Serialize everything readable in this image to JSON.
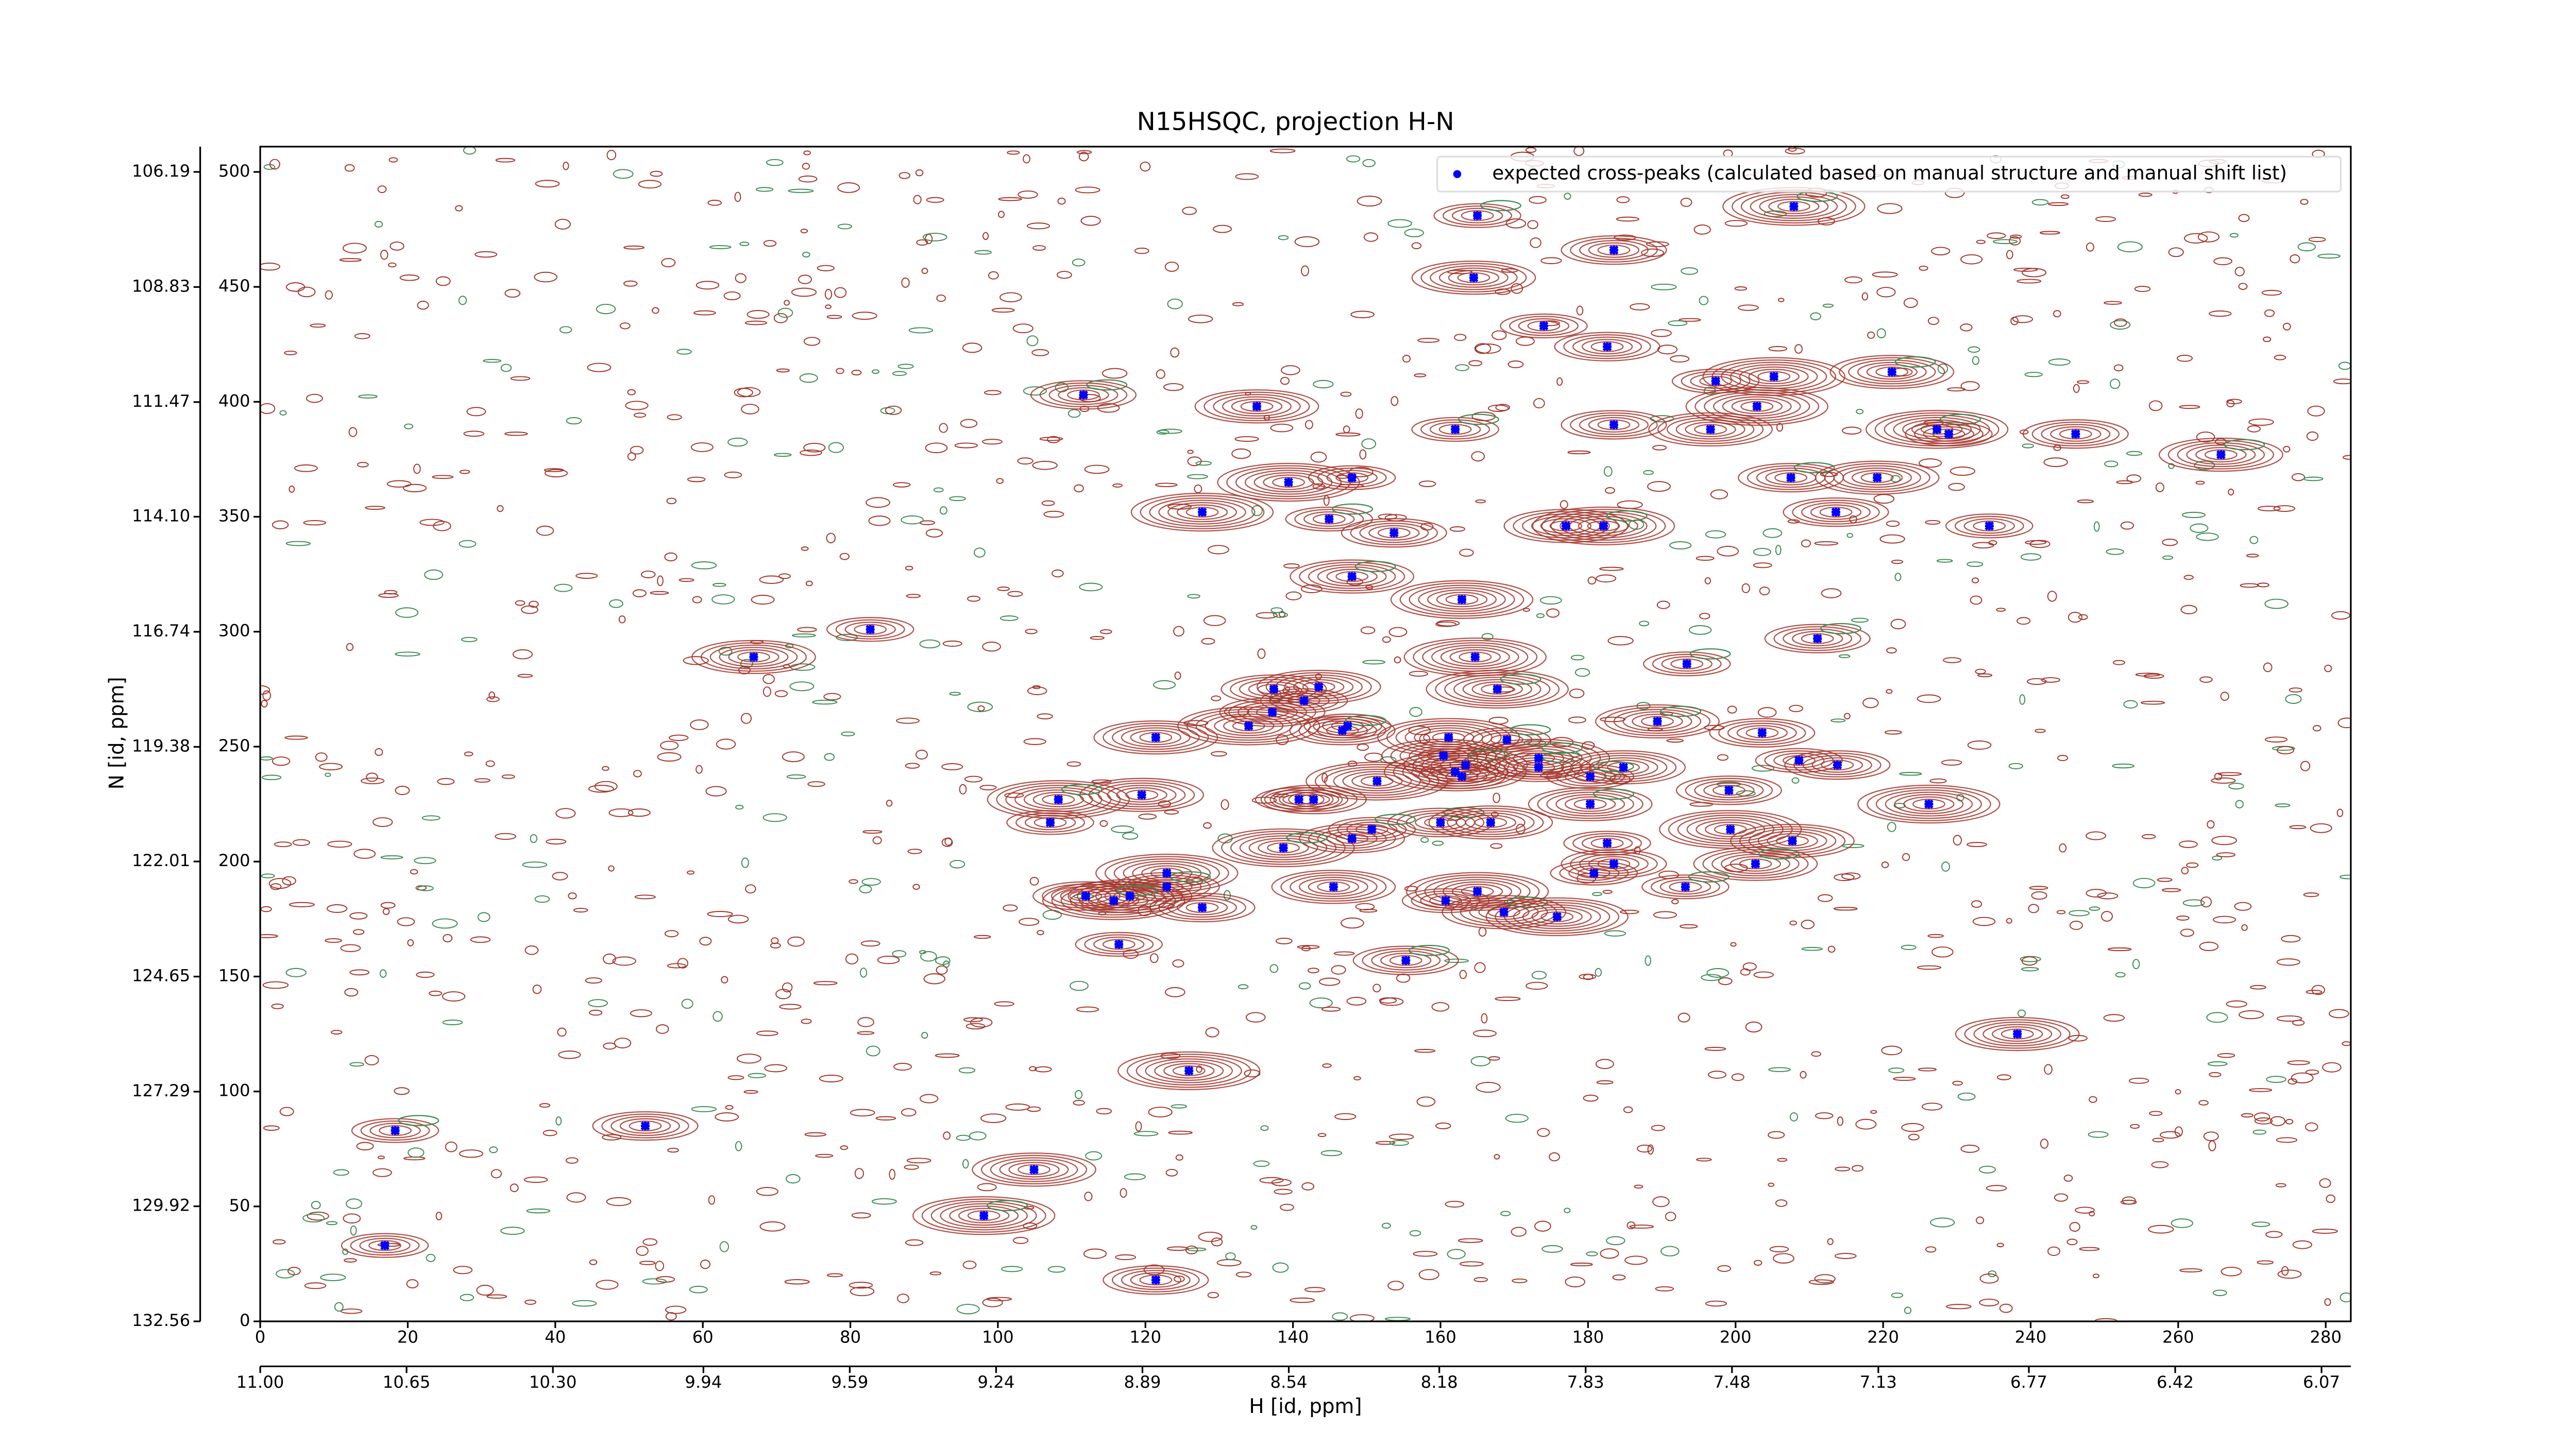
{
  "chart_data": {
    "type": "scatter",
    "title": "N15HSQC, projection H-N",
    "x_label": "H [id, ppm]",
    "y_label": "N [id, ppm]",
    "x": [
      165.0,
      183.5,
      164.5,
      207.9,
      174.0,
      182.6,
      221.2,
      205.2,
      197.3,
      111.6,
      135.1,
      202.9,
      162.0,
      183.5,
      196.6,
      227.3,
      228.9,
      246.1,
      265.8,
      139.4,
      148.0,
      207.5,
      219.2,
      127.7,
      144.9,
      213.6,
      177.0,
      182.1,
      234.4,
      153.7,
      148.0,
      162.9,
      82.7,
      211.1,
      66.9,
      164.7,
      193.4,
      137.4,
      143.5,
      167.7,
      141.5,
      137.2,
      189.4,
      134.0,
      147.4,
      146.7,
      121.4,
      161.1,
      169.0,
      203.6,
      160.4,
      173.3,
      208.6,
      213.8,
      163.4,
      162.0,
      162.9,
      173.3,
      184.8,
      151.4,
      180.3,
      199.1,
      119.5,
      108.2,
      140.8,
      142.8,
      180.3,
      226.2,
      107.1,
      160.0,
      166.8,
      199.3,
      150.7,
      148.0,
      207.7,
      138.7,
      182.6,
      183.5,
      202.7,
      122.9,
      180.8,
      122.9,
      145.5,
      165.0,
      193.2,
      111.9,
      117.9,
      115.7,
      160.7,
      127.7,
      168.6,
      175.8,
      116.4,
      155.3,
      238.2,
      125.9,
      18.3,
      52.2,
      104.9,
      98.1,
      16.9,
      121.4
    ],
    "series": [
      {
        "name": "expected cross-peaks (calculated based on manual structure and manual shift list)",
        "color": "#0000ff",
        "values": [
          481,
          466,
          454,
          485,
          433,
          424,
          413,
          411,
          409,
          403,
          398,
          398,
          388,
          390,
          388,
          388,
          386,
          386,
          377,
          365,
          367,
          367,
          367,
          352,
          349,
          352,
          346,
          346,
          346,
          343,
          324,
          314,
          301,
          297,
          289,
          289,
          286,
          275,
          276,
          275,
          270,
          265,
          261,
          259,
          259,
          257,
          254,
          254,
          253,
          256,
          246,
          245,
          244,
          242,
          242,
          239,
          237,
          241,
          241,
          235,
          237,
          231,
          229,
          227,
          227,
          227,
          225,
          225,
          217,
          217,
          217,
          214,
          214,
          210,
          209,
          206,
          208,
          199,
          199,
          195,
          195,
          189,
          189,
          187,
          189,
          185,
          185,
          183,
          183,
          180,
          178,
          176,
          164,
          157,
          125,
          109,
          83,
          85,
          66,
          46,
          33,
          18
        ]
      }
    ],
    "xlim": [
      0,
      283.4
    ],
    "xticks": [
      0,
      20,
      40,
      60,
      80,
      100,
      120,
      140,
      160,
      180,
      200,
      220,
      240,
      260,
      280
    ],
    "ylim": [
      0,
      511
    ],
    "yticks": [
      0,
      50,
      100,
      150,
      200,
      250,
      300,
      350,
      400,
      450,
      500
    ],
    "x2lim": [
      11.0,
      6.0
    ],
    "x2ticks": [
      {
        "value": 11,
        "label": "11.00"
      },
      10.65,
      {
        "value": 10.3,
        "label": "10.30"
      },
      9.94,
      9.59,
      9.24,
      8.89,
      8.54,
      8.18,
      7.83,
      7.48,
      7.13,
      6.77,
      6.42,
      6.07
    ],
    "y2lim": [
      132.56,
      105.61
    ],
    "y2ticks": [
      106.19,
      108.83,
      111.47,
      {
        "value": 114.1,
        "label": "114.10"
      },
      116.74,
      119.38,
      122.01,
      124.65,
      127.29,
      129.92,
      132.56
    ],
    "legend": "upper right",
    "contour_colors": [
      "#a3352b",
      "#3d8c55"
    ]
  }
}
